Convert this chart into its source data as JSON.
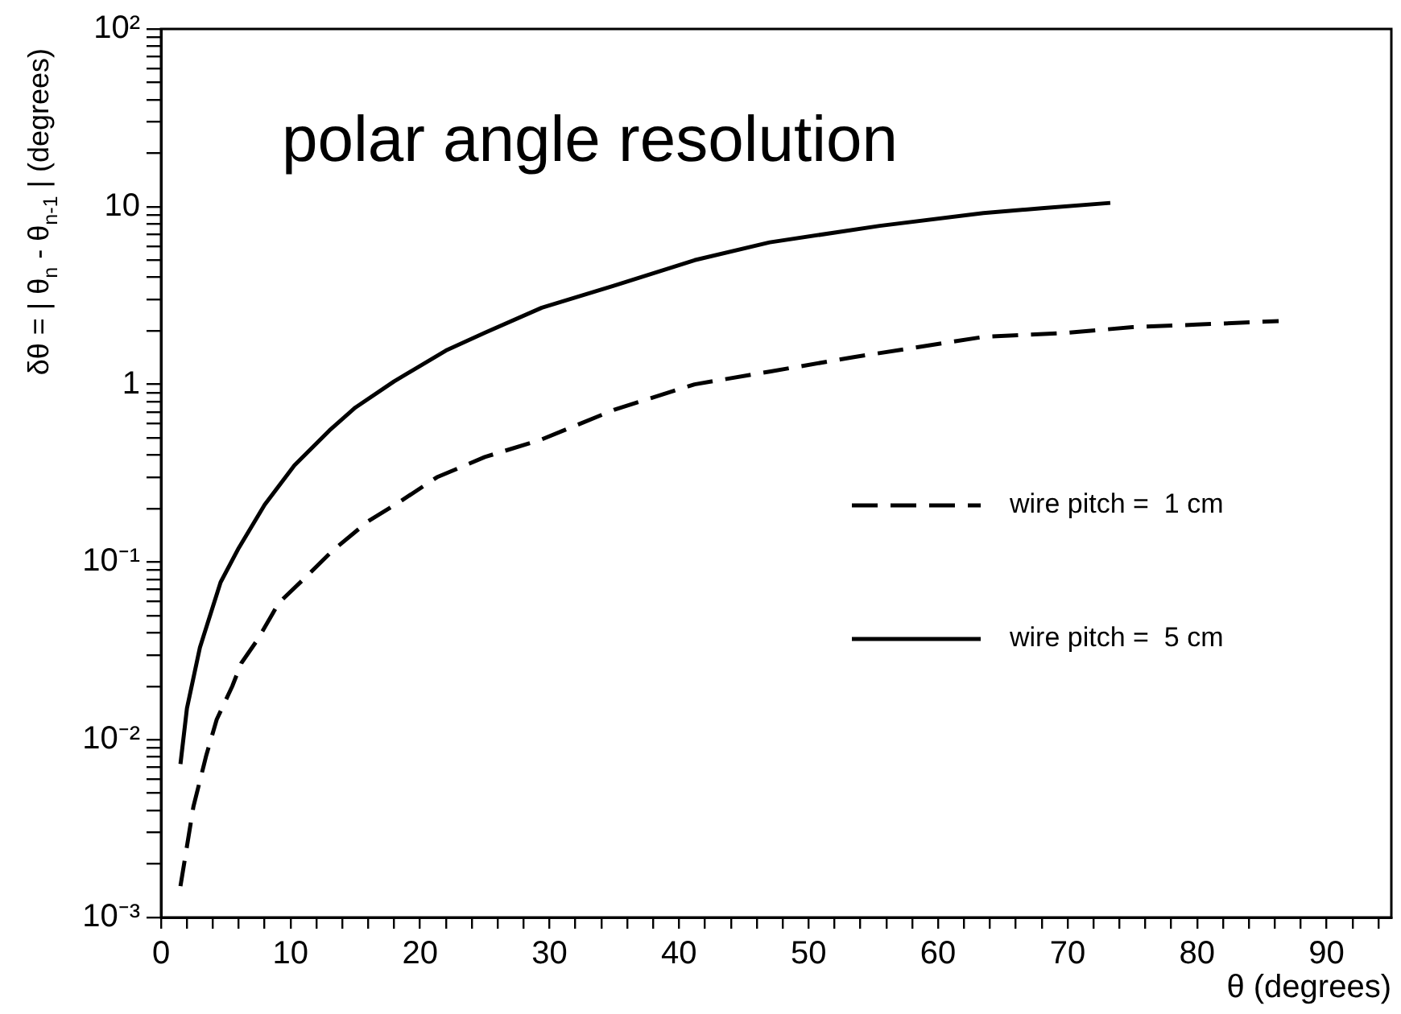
{
  "chart_data": {
    "type": "line",
    "title": "polar angle resolution",
    "xlabel": "θ (degrees)",
    "ylabel": "δθ = | θ$_{n}$ - θ$_{n-1}$ | (degrees)",
    "log": "y",
    "legend": "right",
    "marker": "none",
    "xlim": [
      0,
      95
    ],
    "ylim": [
      0.001,
      100
    ],
    "xticks": [
      0,
      {
        "value": 2,
        "label": null
      },
      {
        "value": 4,
        "label": null
      },
      {
        "value": 6,
        "label": null
      },
      {
        "value": 8,
        "label": null
      },
      10,
      {
        "value": 12,
        "label": null
      },
      {
        "value": 14,
        "label": null
      },
      {
        "value": 16,
        "label": null
      },
      {
        "value": 18,
        "label": null
      },
      20,
      {
        "value": 22,
        "label": null
      },
      {
        "value": 24,
        "label": null
      },
      {
        "value": 26,
        "label": null
      },
      {
        "value": 28,
        "label": null
      },
      30,
      {
        "value": 32,
        "label": null
      },
      {
        "value": 34,
        "label": null
      },
      {
        "value": 36,
        "label": null
      },
      {
        "value": 38,
        "label": null
      },
      40,
      {
        "value": 42,
        "label": null
      },
      {
        "value": 44,
        "label": null
      },
      {
        "value": 46,
        "label": null
      },
      {
        "value": 48,
        "label": null
      },
      50,
      {
        "value": 52,
        "label": null
      },
      {
        "value": 54,
        "label": null
      },
      {
        "value": 56,
        "label": null
      },
      {
        "value": 58,
        "label": null
      },
      60,
      {
        "value": 62,
        "label": null
      },
      {
        "value": 64,
        "label": null
      },
      {
        "value": 66,
        "label": null
      },
      {
        "value": 68,
        "label": null
      },
      70,
      {
        "value": 72,
        "label": null
      },
      {
        "value": 74,
        "label": null
      },
      {
        "value": 76,
        "label": null
      },
      {
        "value": 78,
        "label": null
      },
      80,
      {
        "value": 82,
        "label": null
      },
      {
        "value": 84,
        "label": null
      },
      {
        "value": 86,
        "label": null
      },
      {
        "value": 88,
        "label": null
      },
      90,
      {
        "value": 92,
        "label": null
      },
      {
        "value": 94,
        "label": null
      }
    ],
    "yticks": [
      {
        "value": 0.001,
        "label": "10⁻³"
      },
      {
        "value": 0.002,
        "label": null
      },
      {
        "value": 0.003,
        "label": null
      },
      {
        "value": 0.004,
        "label": null
      },
      {
        "value": 0.005,
        "label": null
      },
      {
        "value": 0.006,
        "label": null
      },
      {
        "value": 0.007,
        "label": null
      },
      {
        "value": 0.008,
        "label": null
      },
      {
        "value": 0.009,
        "label": null
      },
      {
        "value": 0.01,
        "label": "10⁻²"
      },
      {
        "value": 0.02,
        "label": null
      },
      {
        "value": 0.03,
        "label": null
      },
      {
        "value": 0.04,
        "label": null
      },
      {
        "value": 0.05,
        "label": null
      },
      {
        "value": 0.06,
        "label": null
      },
      {
        "value": 0.07,
        "label": null
      },
      {
        "value": 0.08,
        "label": null
      },
      {
        "value": 0.09,
        "label": null
      },
      {
        "value": 0.1,
        "label": "10⁻¹"
      },
      {
        "value": 0.2,
        "label": null
      },
      {
        "value": 0.3,
        "label": null
      },
      {
        "value": 0.4,
        "label": null
      },
      {
        "value": 0.5,
        "label": null
      },
      {
        "value": 0.6,
        "label": null
      },
      {
        "value": 0.7,
        "label": null
      },
      {
        "value": 0.8,
        "label": null
      },
      {
        "value": 0.9,
        "label": null
      },
      1,
      {
        "value": 2,
        "label": null
      },
      {
        "value": 3,
        "label": null
      },
      {
        "value": 4,
        "label": null
      },
      {
        "value": 5,
        "label": null
      },
      {
        "value": 6,
        "label": null
      },
      {
        "value": 7,
        "label": null
      },
      {
        "value": 8,
        "label": null
      },
      {
        "value": 9,
        "label": null
      },
      10,
      {
        "value": 20,
        "label": null
      },
      {
        "value": 30,
        "label": null
      },
      {
        "value": 40,
        "label": null
      },
      {
        "value": 50,
        "label": null
      },
      {
        "value": 60,
        "label": null
      },
      {
        "value": 70,
        "label": null
      },
      {
        "value": 80,
        "label": null
      },
      {
        "value": 90,
        "label": null
      },
      {
        "value": 100,
        "label": "10²"
      }
    ],
    "series": [
      {
        "name": "wire pitch =  1 cm",
        "color": "#000000",
        "line_style": "dashed",
        "x": [
          1.5,
          2.5,
          3.5,
          4.3,
          5.5,
          6.2,
          7.5,
          9.1,
          11,
          13.2,
          16,
          18.5,
          21.3,
          25,
          29.4,
          35,
          41.2,
          47,
          53.4,
          58,
          63.5,
          70,
          75,
          80,
          86.3
        ],
        "values": [
          0.0015,
          0.0042,
          0.0082,
          0.013,
          0.02,
          0.027,
          0.037,
          0.059,
          0.08,
          0.115,
          0.17,
          0.22,
          0.3,
          0.39,
          0.49,
          0.72,
          1.0,
          1.18,
          1.42,
          1.6,
          1.85,
          1.95,
          2.1,
          2.17,
          2.27
        ]
      },
      {
        "name": "wire pitch =  5 cm",
        "color": "#000000",
        "line_style": "solid",
        "x": [
          1.5,
          2,
          3,
          4.6,
          6,
          8,
          10.3,
          13,
          15,
          18,
          22,
          25,
          29.4,
          35,
          41.2,
          47,
          55.5,
          63.5,
          68,
          73.3
        ],
        "values": [
          0.0073,
          0.015,
          0.033,
          0.077,
          0.12,
          0.21,
          0.35,
          0.55,
          0.74,
          1.04,
          1.55,
          1.95,
          2.7,
          3.6,
          5.0,
          6.3,
          7.8,
          9.2,
          9.8,
          10.5
        ]
      }
    ]
  }
}
